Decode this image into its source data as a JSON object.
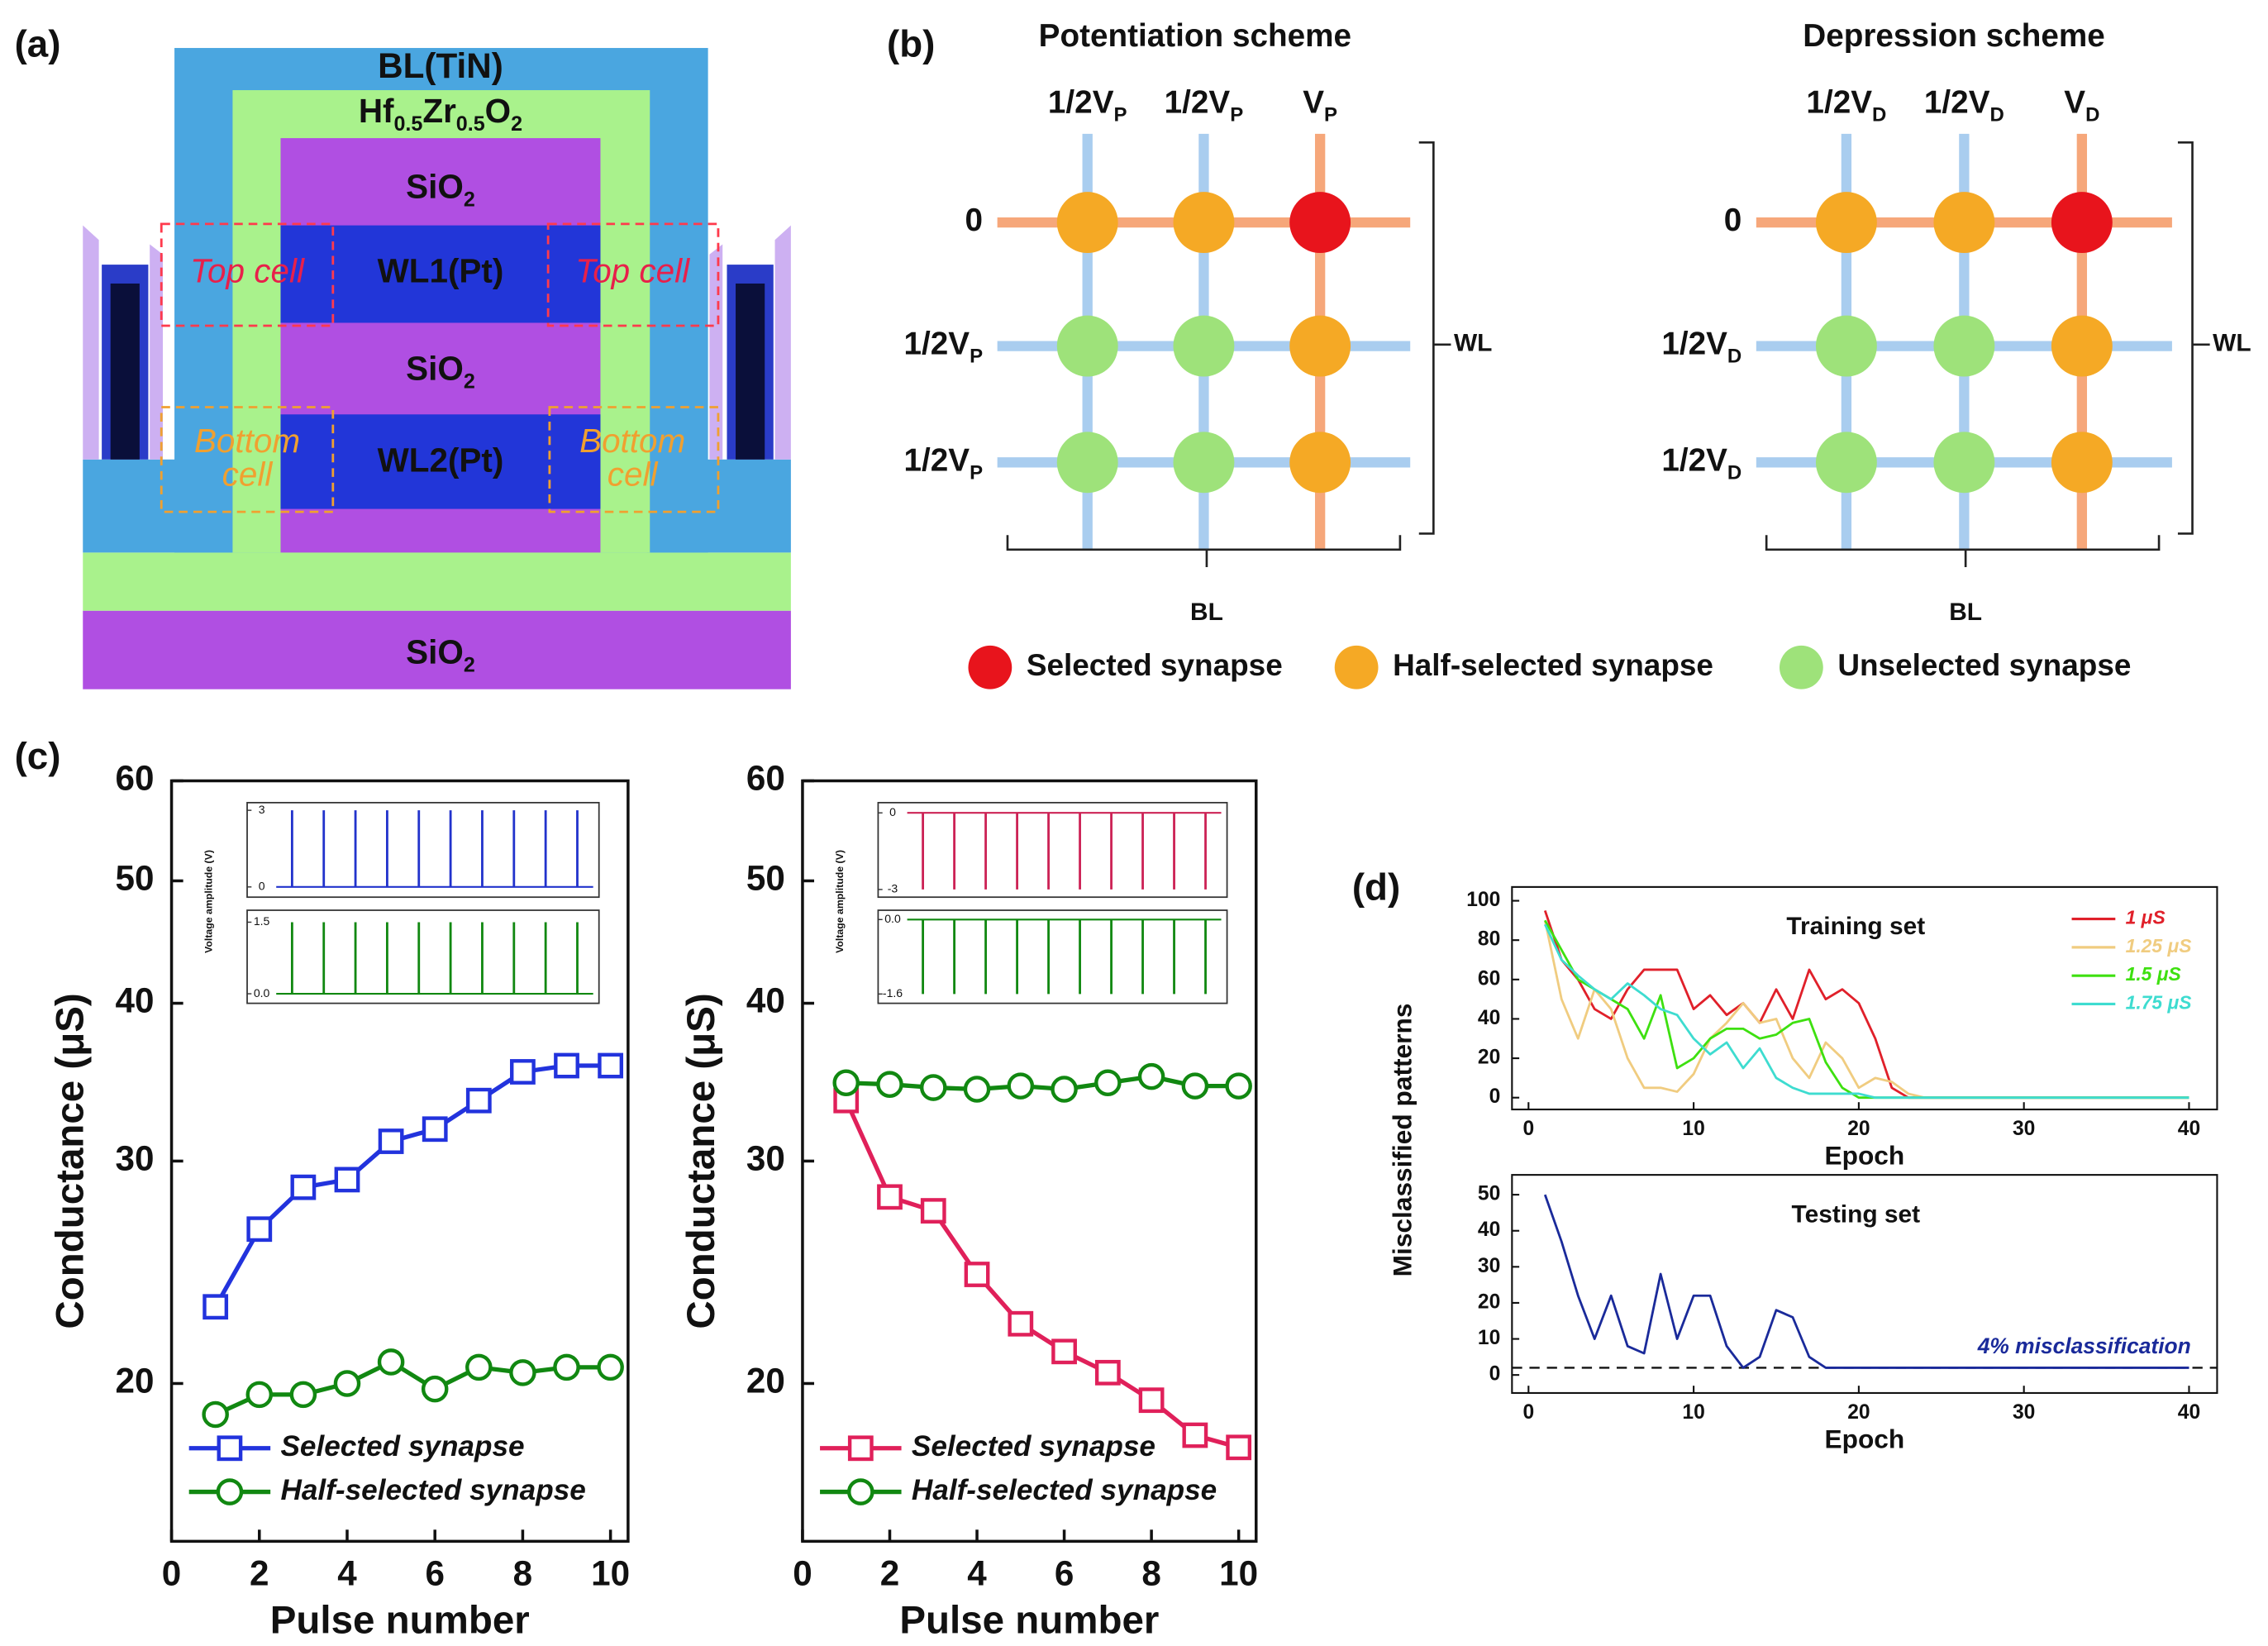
{
  "panel_labels": [
    "(a)",
    "(b)",
    "(c)",
    "(d)"
  ],
  "device": {
    "bl": "BL(TiN)",
    "ferro": [
      {
        "text": "Hf",
        "sub": "0.5"
      },
      {
        "text": "Zr",
        "sub": "0.5"
      },
      {
        "text": "O",
        "sub": "2"
      }
    ],
    "layers": [
      [
        {
          "text": "SiO",
          "sub": "2"
        }
      ],
      [
        {
          "text": "WL1(Pt)"
        }
      ],
      [
        {
          "text": "SiO",
          "sub": "2"
        }
      ],
      [
        {
          "text": "WL2(Pt)"
        }
      ],
      [
        {
          "text": "SiO",
          "sub": "2"
        }
      ]
    ],
    "top_cell": [
      "Top cell",
      "Top cell"
    ],
    "bottom_cell": [
      [
        "Bottom",
        "cell"
      ],
      [
        "Bottom",
        "cell"
      ]
    ]
  },
  "schemes": [
    {
      "title": "Potentiation scheme",
      "columns": [
        [
          {
            "text": "1/2V",
            "sub": "P"
          }
        ],
        [
          {
            "text": "1/2V",
            "sub": "P"
          }
        ],
        [
          {
            "text": "V",
            "sub": "P"
          }
        ]
      ],
      "rows": [
        [
          {
            "text": "0"
          }
        ],
        [
          {
            "text": "1/2V",
            "sub": "P"
          }
        ],
        [
          {
            "text": "1/2V",
            "sub": "P"
          }
        ]
      ],
      "nodes": [
        [
          "half",
          "half",
          "selected"
        ],
        [
          "unselected",
          "unselected",
          "half"
        ],
        [
          "unselected",
          "unselected",
          "half"
        ]
      ],
      "wl": "WL",
      "bl": "BL"
    },
    {
      "title": "Depression scheme",
      "columns": [
        [
          {
            "text": "1/2V",
            "sub": "D"
          }
        ],
        [
          {
            "text": "1/2V",
            "sub": "D"
          }
        ],
        [
          {
            "text": "V",
            "sub": "D"
          }
        ]
      ],
      "rows": [
        [
          {
            "text": "0"
          }
        ],
        [
          {
            "text": "1/2V",
            "sub": "D"
          }
        ],
        [
          {
            "text": "1/2V",
            "sub": "D"
          }
        ]
      ],
      "nodes": [
        [
          "half",
          "half",
          "selected"
        ],
        [
          "unselected",
          "unselected",
          "half"
        ],
        [
          "unselected",
          "unselected",
          "half"
        ]
      ],
      "wl": "WL",
      "bl": "BL"
    }
  ],
  "legend": [
    {
      "state": "selected",
      "label": "Selected synapse",
      "color": "#e8141c"
    },
    {
      "state": "half",
      "label": "Half-selected synapse",
      "color": "#f5a925"
    },
    {
      "state": "unselected",
      "label": "Unselected synapse",
      "color": "#9ee27a"
    }
  ],
  "chart_data": [
    {
      "type": "line",
      "log_scale": true,
      "x": [
        1,
        2,
        3,
        4,
        5,
        6,
        7,
        8,
        9,
        10
      ],
      "xlim": [
        0,
        10.4
      ],
      "xticks": [
        0,
        2,
        4,
        6,
        8,
        10
      ],
      "ylim": [
        15,
        60
      ],
      "yticks": [
        20,
        30,
        40,
        50,
        60
      ],
      "x_label": "Pulse number",
      "y_label": "Conductance (μS)",
      "series": [
        {
          "name": "Selected synapse",
          "color": "#2233dd",
          "marker": "square",
          "values": [
            23.0,
            26.5,
            28.6,
            29.0,
            31.1,
            31.8,
            33.5,
            35.3,
            35.7,
            35.7
          ]
        },
        {
          "name": "Half-selected synapse",
          "color": "#118811",
          "marker": "circle",
          "values": [
            18.9,
            19.6,
            19.6,
            20.0,
            20.8,
            19.8,
            20.6,
            20.4,
            20.6,
            20.6
          ]
        }
      ],
      "inset_label": "Voltage amplitude (V)",
      "insets": [
        {
          "ylim": [
            -0.4,
            3.3
          ],
          "yticks": [
            3,
            0
          ],
          "color": "#2233cc"
        },
        {
          "ylim": [
            -0.2,
            1.75
          ],
          "yticks": [
            1.5,
            {
              "value": 0,
              "label": "0.0"
            }
          ],
          "color": "#118811"
        }
      ]
    },
    {
      "type": "line",
      "log_scale": true,
      "x": [
        1,
        2,
        3,
        4,
        5,
        6,
        7,
        8,
        9,
        10
      ],
      "xlim": [
        0,
        10.4
      ],
      "xticks": [
        0,
        2,
        4,
        6,
        8,
        10
      ],
      "ylim": [
        15,
        60
      ],
      "yticks": [
        20,
        30,
        40,
        50,
        60
      ],
      "x_label": "Pulse number",
      "y_label": "Conductance (μS)",
      "series": [
        {
          "name": "Selected synapse",
          "color": "#e0205a",
          "marker": "square",
          "values": [
            33.5,
            28.1,
            27.4,
            24.4,
            22.3,
            21.2,
            20.4,
            19.4,
            18.2,
            17.8
          ]
        },
        {
          "name": "Half-selected synapse",
          "color": "#118811",
          "marker": "circle",
          "values": [
            34.6,
            34.5,
            34.3,
            34.2,
            34.4,
            34.2,
            34.6,
            35.0,
            34.4,
            34.4
          ]
        }
      ],
      "inset_label": "Voltage amplitude (V)",
      "insets": [
        {
          "ylim": [
            -3.3,
            0.4
          ],
          "yticks": [
            0,
            -3
          ],
          "color": "#cc2255"
        },
        {
          "ylim": [
            -1.8,
            0.2
          ],
          "yticks": [
            {
              "value": 0,
              "label": "0.0"
            },
            -1.6
          ],
          "color": "#118811"
        }
      ]
    },
    {
      "type": "line",
      "title": "Training set",
      "x": [
        1,
        2,
        3,
        4,
        5,
        6,
        7,
        8,
        9,
        10,
        11,
        12,
        13,
        14,
        15,
        16,
        17,
        18,
        19,
        20,
        21,
        22,
        23,
        24,
        25,
        26,
        27,
        28,
        29,
        30,
        31,
        32,
        33,
        34,
        35,
        36,
        37,
        38,
        39,
        40
      ],
      "xlim": [
        -1,
        41.7
      ],
      "xticks": [
        0,
        10,
        20,
        30,
        40
      ],
      "ylim": [
        -6,
        107
      ],
      "yticks": [
        0,
        20,
        40,
        60,
        80,
        100
      ],
      "x_label": "Epoch",
      "y_label": "Misclassified patterns",
      "series": [
        {
          "name": "1 μS",
          "color": "#e0202a",
          "values": [
            95,
            70,
            60,
            45,
            40,
            55,
            65,
            65,
            65,
            45,
            52,
            42,
            48,
            38,
            55,
            40,
            65,
            50,
            55,
            48,
            30,
            5,
            0,
            0,
            0,
            0,
            0,
            0,
            0,
            0,
            0,
            0,
            0,
            0,
            0,
            0,
            0,
            0,
            0,
            0
          ]
        },
        {
          "name": "1.25 μS",
          "color": "#f0cc80",
          "values": [
            90,
            50,
            30,
            55,
            45,
            20,
            5,
            5,
            3,
            12,
            30,
            38,
            48,
            38,
            40,
            20,
            10,
            28,
            20,
            5,
            10,
            8,
            2,
            0,
            0,
            0,
            0,
            0,
            0,
            0,
            0,
            0,
            0,
            0,
            0,
            0,
            0,
            0,
            0,
            0
          ]
        },
        {
          "name": "1.5 μS",
          "color": "#3ee010",
          "values": [
            90,
            75,
            60,
            55,
            50,
            45,
            30,
            52,
            15,
            20,
            30,
            35,
            35,
            30,
            32,
            38,
            40,
            18,
            5,
            0,
            0,
            0,
            0,
            0,
            0,
            0,
            0,
            0,
            0,
            0,
            0,
            0,
            0,
            0,
            0,
            0,
            0,
            0,
            0,
            0
          ]
        },
        {
          "name": "1.75 μS",
          "color": "#3edcd0",
          "values": [
            88,
            70,
            62,
            55,
            50,
            58,
            52,
            45,
            42,
            30,
            22,
            28,
            15,
            25,
            10,
            5,
            2,
            2,
            2,
            2,
            0,
            0,
            0,
            0,
            0,
            0,
            0,
            0,
            0,
            0,
            0,
            0,
            0,
            0,
            0,
            0,
            0,
            0,
            0,
            0
          ]
        }
      ]
    },
    {
      "type": "line",
      "title": "Testing set",
      "x": [
        1,
        2,
        3,
        4,
        5,
        6,
        7,
        8,
        9,
        10,
        11,
        12,
        13,
        14,
        15,
        16,
        17,
        18,
        19,
        20,
        21,
        22,
        23,
        24,
        25,
        26,
        27,
        28,
        29,
        30,
        31,
        32,
        33,
        34,
        35,
        36,
        37,
        38,
        39,
        40
      ],
      "xlim": [
        -1,
        41.7
      ],
      "xticks": [
        0,
        10,
        20,
        30,
        40
      ],
      "ylim": [
        -5,
        55.5
      ],
      "yticks": [
        0,
        10,
        20,
        30,
        40,
        50
      ],
      "x_label": "Epoch",
      "series": [
        {
          "color": "#1a2a9a",
          "values": [
            50,
            37,
            22,
            10,
            22,
            8,
            6,
            28,
            10,
            22,
            22,
            8,
            2,
            5,
            18,
            16,
            5,
            2,
            2,
            2,
            2,
            2,
            2,
            2,
            2,
            2,
            2,
            2,
            2,
            2,
            2,
            2,
            2,
            2,
            2,
            2,
            2,
            2,
            2,
            2
          ]
        }
      ],
      "reference_line": {
        "value": 2,
        "label": "4% misclassification",
        "color": "#1a2a9a"
      }
    }
  ]
}
